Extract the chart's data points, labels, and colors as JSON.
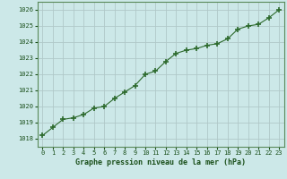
{
  "x": [
    0,
    1,
    2,
    3,
    4,
    5,
    6,
    7,
    8,
    9,
    10,
    11,
    12,
    13,
    14,
    15,
    16,
    17,
    18,
    19,
    20,
    21,
    22,
    23
  ],
  "y": [
    1018.2,
    1018.7,
    1019.2,
    1019.3,
    1019.5,
    1019.9,
    1020.0,
    1020.5,
    1020.9,
    1021.3,
    1022.0,
    1022.2,
    1022.8,
    1023.3,
    1023.5,
    1023.6,
    1023.8,
    1023.9,
    1024.2,
    1024.8,
    1025.0,
    1025.1,
    1025.5,
    1026.0
  ],
  "line_color": "#2d6a2d",
  "marker_color": "#2d6a2d",
  "bg_color": "#cce8e8",
  "grid_color": "#b0c8c8",
  "xlabel": "Graphe pression niveau de la mer (hPa)",
  "xlabel_color": "#1a4f1a",
  "tick_color": "#1a4f1a",
  "ylim": [
    1017.5,
    1026.5
  ],
  "yticks": [
    1018,
    1019,
    1020,
    1021,
    1022,
    1023,
    1024,
    1025,
    1026
  ],
  "xlim": [
    -0.5,
    23.5
  ],
  "xtick_labels": [
    "0",
    "1",
    "2",
    "3",
    "4",
    "5",
    "6",
    "7",
    "8",
    "9",
    "10",
    "11",
    "12",
    "13",
    "14",
    "15",
    "16",
    "17",
    "18",
    "19",
    "20",
    "21",
    "22",
    "23"
  ]
}
